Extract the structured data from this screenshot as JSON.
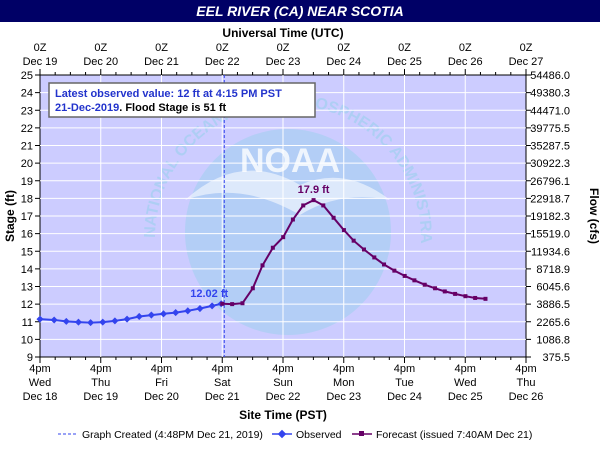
{
  "chart_data": {
    "type": "line",
    "title": "EEL RIVER (CA) NEAR SCOTIA",
    "top_axis_title": "Universal Time (UTC)",
    "bottom_axis_title": "Site Time (PST)",
    "ylabel": "Stage (ft)",
    "y2label": "Flow (cfs)",
    "ylim": [
      9,
      25
    ],
    "y_ticks": [
      9,
      10,
      11,
      12,
      13,
      14,
      15,
      16,
      17,
      18,
      19,
      20,
      21,
      22,
      23,
      24,
      25
    ],
    "y2_ticks": [
      {
        "stage": 9,
        "label": "375.5"
      },
      {
        "stage": 10,
        "label": "1086.8"
      },
      {
        "stage": 11,
        "label": "2265.6"
      },
      {
        "stage": 12,
        "label": "3886.5"
      },
      {
        "stage": 13,
        "label": "6045.6"
      },
      {
        "stage": 14,
        "label": "8718.9"
      },
      {
        "stage": 15,
        "label": "11934.6"
      },
      {
        "stage": 16,
        "label": "15519.0"
      },
      {
        "stage": 17,
        "label": "19182.3"
      },
      {
        "stage": 18,
        "label": "22918.7"
      },
      {
        "stage": 19,
        "label": "26796.1"
      },
      {
        "stage": 20,
        "label": "30922.3"
      },
      {
        "stage": 21,
        "label": "35287.5"
      },
      {
        "stage": 22,
        "label": "39775.5"
      },
      {
        "stage": 23,
        "label": "44471.0"
      },
      {
        "stage": 24,
        "label": "49380.3"
      },
      {
        "stage": 25,
        "label": "54486.0"
      }
    ],
    "x_ticks_top": [
      {
        "line1": "0Z",
        "line2": "Dec 19"
      },
      {
        "line1": "0Z",
        "line2": "Dec 20"
      },
      {
        "line1": "0Z",
        "line2": "Dec 21"
      },
      {
        "line1": "0Z",
        "line2": "Dec 22"
      },
      {
        "line1": "0Z",
        "line2": "Dec 23"
      },
      {
        "line1": "0Z",
        "line2": "Dec 24"
      },
      {
        "line1": "0Z",
        "line2": "Dec 25"
      },
      {
        "line1": "0Z",
        "line2": "Dec 26"
      },
      {
        "line1": "0Z",
        "line2": "Dec 27"
      }
    ],
    "x_ticks_bottom": [
      {
        "line1": "4pm",
        "line2": "Wed",
        "line3": "Dec 18"
      },
      {
        "line1": "4pm",
        "line2": "Thu",
        "line3": "Dec 19"
      },
      {
        "line1": "4pm",
        "line2": "Fri",
        "line3": "Dec 20"
      },
      {
        "line1": "4pm",
        "line2": "Sat",
        "line3": "Dec 21"
      },
      {
        "line1": "4pm",
        "line2": "Sun",
        "line3": "Dec 22"
      },
      {
        "line1": "4pm",
        "line2": "Mon",
        "line3": "Dec 23"
      },
      {
        "line1": "4pm",
        "line2": "Tue",
        "line3": "Dec 24"
      },
      {
        "line1": "4pm",
        "line2": "Wed",
        "line3": "Dec 25"
      },
      {
        "line1": "4pm",
        "line2": "Thu",
        "line3": "Dec 26"
      }
    ],
    "xlim_days": [
      18.667,
      26.667
    ],
    "graph_created_day": 21.7,
    "series": [
      {
        "name": "Observed",
        "color": "#3344ee",
        "points": [
          [
            18.667,
            11.15
          ],
          [
            18.9,
            11.1
          ],
          [
            19.1,
            11.02
          ],
          [
            19.3,
            10.98
          ],
          [
            19.5,
            10.95
          ],
          [
            19.7,
            10.98
          ],
          [
            19.9,
            11.05
          ],
          [
            20.1,
            11.15
          ],
          [
            20.3,
            11.3
          ],
          [
            20.5,
            11.38
          ],
          [
            20.7,
            11.45
          ],
          [
            20.9,
            11.52
          ],
          [
            21.1,
            11.62
          ],
          [
            21.3,
            11.75
          ],
          [
            21.5,
            11.9
          ],
          [
            21.65,
            12.02
          ]
        ]
      },
      {
        "name": "Forecast (issued 7:40AM Dec 21)",
        "color": "#660066",
        "points": [
          [
            21.667,
            12.02
          ],
          [
            21.83,
            12.0
          ],
          [
            22.0,
            12.05
          ],
          [
            22.17,
            12.9
          ],
          [
            22.33,
            14.2
          ],
          [
            22.5,
            15.2
          ],
          [
            22.67,
            15.8
          ],
          [
            22.83,
            16.8
          ],
          [
            23.0,
            17.6
          ],
          [
            23.17,
            17.9
          ],
          [
            23.33,
            17.6
          ],
          [
            23.5,
            16.9
          ],
          [
            23.67,
            16.2
          ],
          [
            23.83,
            15.6
          ],
          [
            24.0,
            15.1
          ],
          [
            24.17,
            14.65
          ],
          [
            24.33,
            14.25
          ],
          [
            24.5,
            13.9
          ],
          [
            24.67,
            13.6
          ],
          [
            24.83,
            13.35
          ],
          [
            25.0,
            13.1
          ],
          [
            25.17,
            12.9
          ],
          [
            25.33,
            12.72
          ],
          [
            25.5,
            12.58
          ],
          [
            25.67,
            12.45
          ],
          [
            25.83,
            12.35
          ],
          [
            26.0,
            12.3
          ]
        ]
      }
    ],
    "annotations": {
      "observed_peak": {
        "text": "12.02 ft",
        "day": 21.65,
        "stage": 12.02
      },
      "forecast_peak": {
        "text": "17.9 ft",
        "day": 23.17,
        "stage": 17.9
      }
    },
    "info_box": {
      "line1": "Latest observed value: 12 ft at 4:15 PM PST",
      "line2_date": "21-Dec-2019",
      "line2_rest": ". Flood Stage is 51 ft"
    },
    "watermark": {
      "logo_text": "NOAA",
      "ring_text": "NATIONAL OCEANIC AND ATMOSPHERIC ADMINISTRATION · U.S. DEPARTMENT OF COMMERCE"
    },
    "legend": {
      "created": "Graph Created (4:48PM Dec 21, 2019)",
      "observed": "Observed",
      "forecast": "Forecast (issued 7:40AM Dec 21)"
    },
    "colors": {
      "plot_bg": "#ccccff",
      "title_bg": "#000066",
      "title_fg": "#ffffff",
      "grid": "#ffffff",
      "observed": "#3344ee",
      "forecast": "#660066",
      "info_text": "#2233cc"
    }
  }
}
